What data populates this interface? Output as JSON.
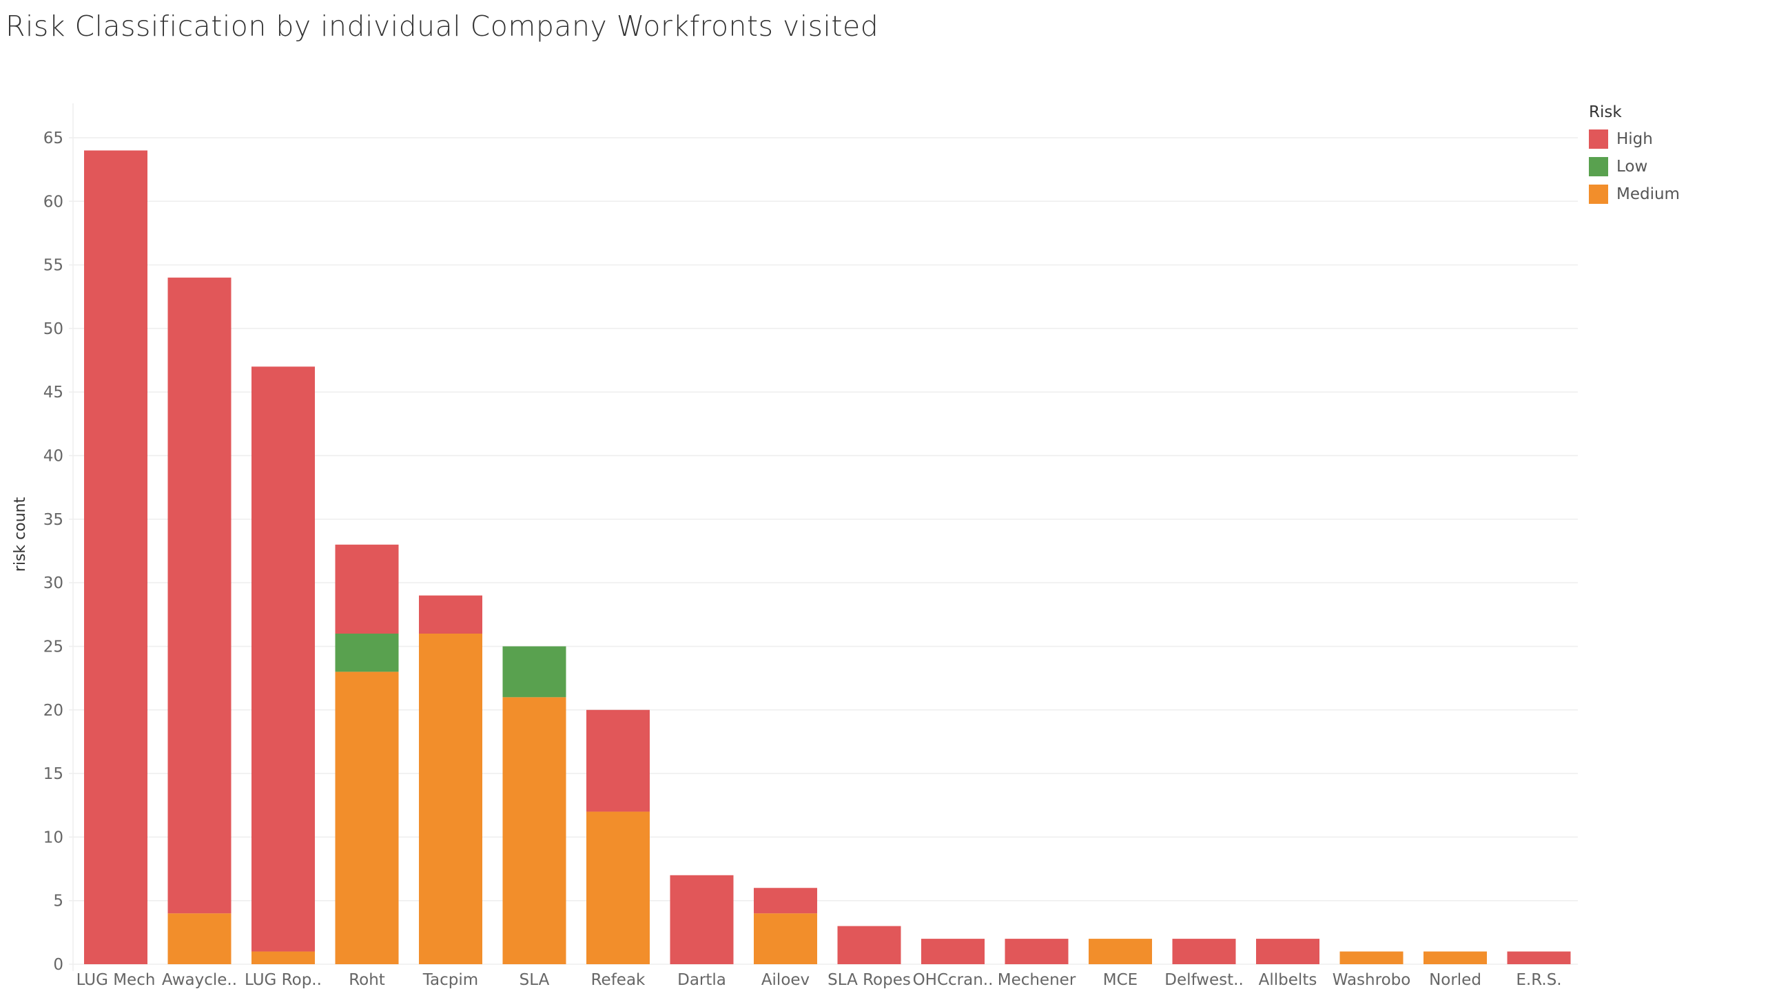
{
  "title": "Risk Classification by individual Company Workfronts visited",
  "legend": {
    "title": "Risk",
    "items": [
      {
        "label": "High",
        "color": "#e15759"
      },
      {
        "label": "Low",
        "color": "#59a14f"
      },
      {
        "label": "Medium",
        "color": "#f28e2b"
      }
    ]
  },
  "chart_data": {
    "type": "bar",
    "stacked": true,
    "title": "Risk Classification by individual Company Workfronts visited",
    "xlabel": "",
    "ylabel": "risk count",
    "ylim": [
      0,
      67
    ],
    "yticks": [
      0,
      5,
      10,
      15,
      20,
      25,
      30,
      35,
      40,
      45,
      50,
      55,
      60,
      65
    ],
    "grid": true,
    "legend_position": "top-right",
    "categories": [
      "LUG Mech",
      "Awaycle..",
      "LUG Rop..",
      "Roht",
      "Tacpim",
      "SLA",
      "Refeak",
      "Dartla",
      "Ailoev",
      "SLA Ropes",
      "OHCcran..",
      "Mechener",
      "MCE",
      "Delfwest..",
      "Allbelts",
      "Washrobo",
      "Norled",
      "E.R.S."
    ],
    "series": [
      {
        "name": "Medium",
        "color": "#f28e2b",
        "values": [
          0,
          4,
          1,
          23,
          26,
          21,
          12,
          0,
          4,
          0,
          0,
          0,
          2,
          0,
          0,
          1,
          1,
          0
        ]
      },
      {
        "name": "Low",
        "color": "#59a14f",
        "values": [
          0,
          0,
          0,
          3,
          0,
          4,
          0,
          0,
          0,
          0,
          0,
          0,
          0,
          0,
          0,
          0,
          0,
          0
        ]
      },
      {
        "name": "High",
        "color": "#e15759",
        "values": [
          64,
          50,
          46,
          7,
          3,
          0,
          8,
          7,
          2,
          3,
          2,
          2,
          0,
          2,
          2,
          0,
          0,
          1
        ]
      }
    ]
  }
}
